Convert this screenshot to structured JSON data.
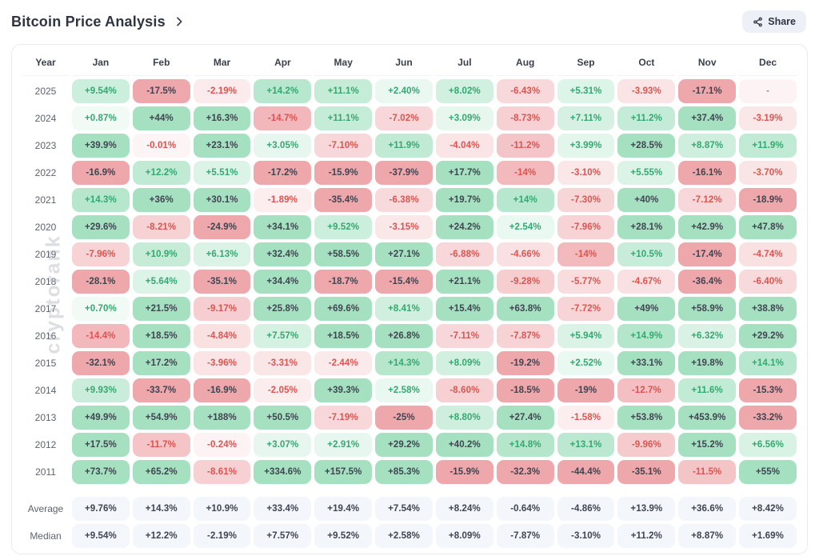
{
  "page": {
    "title": "Bitcoin Price Analysis",
    "share_label": "Share",
    "watermark": "cryptorank"
  },
  "colors": {
    "positive_base": "#28b76c",
    "negative_base": "#d72d37",
    "positive_text": "#35a871",
    "negative_text": "#dd544f",
    "strong_text": "#3f4450",
    "na_bg": "#fdf3f4",
    "na_text": "#8b909a",
    "summary_bg": "#f3f6fa",
    "summary_text": "#3f4450"
  },
  "chart_data": {
    "type": "heatmap",
    "title": "Bitcoin Price Analysis",
    "unit": "monthly return %",
    "columns": [
      "Year",
      "Jan",
      "Feb",
      "Mar",
      "Apr",
      "May",
      "Jun",
      "Jul",
      "Aug",
      "Sep",
      "Oct",
      "Nov",
      "Dec"
    ],
    "rows": [
      {
        "year": "2025",
        "values": [
          "+9.54%",
          "-17.5%",
          "-2.19%",
          "+14.2%",
          "+11.1%",
          "+2.40%",
          "+8.02%",
          "-6.43%",
          "+5.31%",
          "-3.93%",
          "-17.1%",
          "-"
        ]
      },
      {
        "year": "2024",
        "values": [
          "+0.87%",
          "+44%",
          "+16.3%",
          "-14.7%",
          "+11.1%",
          "-7.02%",
          "+3.09%",
          "-8.73%",
          "+7.11%",
          "+11.2%",
          "+37.4%",
          "-3.19%"
        ]
      },
      {
        "year": "2023",
        "values": [
          "+39.9%",
          "-0.01%",
          "+23.1%",
          "+3.05%",
          "-7.10%",
          "+11.9%",
          "-4.04%",
          "-11.2%",
          "+3.99%",
          "+28.5%",
          "+8.87%",
          "+11.9%"
        ]
      },
      {
        "year": "2022",
        "values": [
          "-16.9%",
          "+12.2%",
          "+5.51%",
          "-17.2%",
          "-15.9%",
          "-37.9%",
          "+17.7%",
          "-14%",
          "-3.10%",
          "+5.55%",
          "-16.1%",
          "-3.70%"
        ]
      },
      {
        "year": "2021",
        "values": [
          "+14.3%",
          "+36%",
          "+30.1%",
          "-1.89%",
          "-35.4%",
          "-6.38%",
          "+19.7%",
          "+14%",
          "-7.30%",
          "+40%",
          "-7.12%",
          "-18.9%"
        ]
      },
      {
        "year": "2020",
        "values": [
          "+29.6%",
          "-8.21%",
          "-24.9%",
          "+34.1%",
          "+9.52%",
          "-3.15%",
          "+24.2%",
          "+2.54%",
          "-7.96%",
          "+28.1%",
          "+42.9%",
          "+47.8%"
        ]
      },
      {
        "year": "2019",
        "values": [
          "-7.96%",
          "+10.9%",
          "+6.13%",
          "+32.4%",
          "+58.5%",
          "+27.1%",
          "-6.88%",
          "-4.66%",
          "-14%",
          "+10.5%",
          "-17.4%",
          "-4.74%"
        ]
      },
      {
        "year": "2018",
        "values": [
          "-28.1%",
          "+5.64%",
          "-35.1%",
          "+34.4%",
          "-18.7%",
          "-15.4%",
          "+21.1%",
          "-9.28%",
          "-5.77%",
          "-4.67%",
          "-36.4%",
          "-6.40%"
        ]
      },
      {
        "year": "2017",
        "values": [
          "+0.70%",
          "+21.5%",
          "-9.17%",
          "+25.8%",
          "+69.6%",
          "+8.41%",
          "+15.4%",
          "+63.8%",
          "-7.72%",
          "+49%",
          "+58.9%",
          "+38.8%"
        ]
      },
      {
        "year": "2016",
        "values": [
          "-14.4%",
          "+18.5%",
          "-4.84%",
          "+7.57%",
          "+18.5%",
          "+26.8%",
          "-7.11%",
          "-7.87%",
          "+5.94%",
          "+14.9%",
          "+6.32%",
          "+29.2%"
        ]
      },
      {
        "year": "2015",
        "values": [
          "-32.1%",
          "+17.2%",
          "-3.96%",
          "-3.31%",
          "-2.44%",
          "+14.3%",
          "+8.09%",
          "-19.2%",
          "+2.52%",
          "+33.1%",
          "+19.8%",
          "+14.1%"
        ]
      },
      {
        "year": "2014",
        "values": [
          "+9.93%",
          "-33.7%",
          "-16.9%",
          "-2.05%",
          "+39.3%",
          "+2.58%",
          "-8.60%",
          "-18.5%",
          "-19%",
          "-12.7%",
          "+11.6%",
          "-15.3%"
        ]
      },
      {
        "year": "2013",
        "values": [
          "+49.9%",
          "+54.9%",
          "+188%",
          "+50.5%",
          "-7.19%",
          "-25%",
          "+8.80%",
          "+27.4%",
          "-1.58%",
          "+53.8%",
          "+453.9%",
          "-33.2%"
        ]
      },
      {
        "year": "2012",
        "values": [
          "+17.5%",
          "-11.7%",
          "-0.24%",
          "+3.07%",
          "+2.91%",
          "+29.2%",
          "+40.2%",
          "+14.8%",
          "+13.1%",
          "-9.96%",
          "+15.2%",
          "+6.56%"
        ]
      },
      {
        "year": "2011",
        "values": [
          "+73.7%",
          "+65.2%",
          "-8.61%",
          "+334.6%",
          "+157.5%",
          "+85.3%",
          "-15.9%",
          "-32.3%",
          "-44.4%",
          "-35.1%",
          "-11.5%",
          "+55%"
        ]
      }
    ],
    "summary": [
      {
        "label": "Average",
        "values": [
          "+9.76%",
          "+14.3%",
          "+10.9%",
          "+33.4%",
          "+19.4%",
          "+7.54%",
          "+8.24%",
          "-0.64%",
          "-4.86%",
          "+13.9%",
          "+36.6%",
          "+8.42%"
        ]
      },
      {
        "label": "Median",
        "values": [
          "+9.54%",
          "+12.2%",
          "-2.19%",
          "+7.57%",
          "+9.52%",
          "+2.58%",
          "+8.09%",
          "-7.87%",
          "-3.10%",
          "+11.2%",
          "+8.87%",
          "+1.69%"
        ]
      }
    ]
  }
}
